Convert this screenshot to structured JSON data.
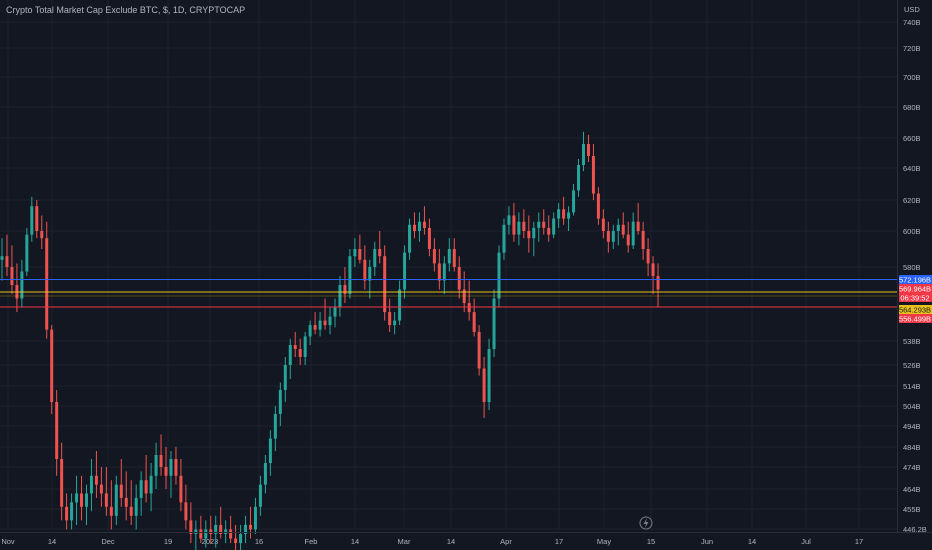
{
  "title": "Crypto Total Market Cap Exclude BTC, $, 1D, CRYPTOCAP",
  "currency": "USD",
  "colors": {
    "background": "#131722",
    "grid": "#1e222d",
    "up": "#26a69a",
    "down": "#ef5350",
    "text": "#b2b5be",
    "line_blue": "#2962ff",
    "line_yellow": "#e8c21a",
    "line_red": "#f23645"
  },
  "icons": {
    "lightning": "lightning-icon"
  },
  "chart_data": {
    "type": "candlestick",
    "interval": "1D",
    "currency": "USD",
    "y_axis": {
      "ticks": [
        "740B",
        "720B",
        "700B",
        "680B",
        "660B",
        "640B",
        "620B",
        "600B",
        "580B",
        "538B",
        "526B",
        "514B",
        "504B",
        "494B",
        "484B",
        "474B",
        "464B",
        "455B",
        "446.2B"
      ],
      "ylim": [
        445,
        745
      ]
    },
    "x_axis": {
      "ticks": [
        "Nov",
        "14",
        "Dec",
        "19",
        "2023",
        "16",
        "Feb",
        "14",
        "Mar",
        "14",
        "Apr",
        "17",
        "May",
        "15",
        "Jun",
        "14",
        "Jul",
        "17"
      ]
    },
    "price_lines": [
      {
        "label": "572.196B",
        "value": 572.196,
        "color": "line_blue",
        "text_color": "#ffffff"
      },
      {
        "label": "569.964B",
        "value": 569.964,
        "color": "line_red",
        "text_color": "#ffffff"
      },
      {
        "label": "06:39:52",
        "value": 567.6,
        "color": "line_red",
        "text_color": "#ffffff"
      },
      {
        "label": "564.293B",
        "value": 564.293,
        "color": "line_yellow",
        "text_color": "#131722"
      },
      {
        "label": "556.499B",
        "value": 556.499,
        "color": "line_red",
        "text_color": "#ffffff"
      }
    ],
    "series": [
      {
        "name": "candles",
        "values": [
          [
            584,
            596,
            574,
            586
          ],
          [
            586,
            598,
            576,
            580
          ],
          [
            580,
            592,
            568,
            572
          ],
          [
            572,
            582,
            560,
            566
          ],
          [
            566,
            584,
            562,
            578
          ],
          [
            578,
            602,
            576,
            598
          ],
          [
            598,
            622,
            594,
            616
          ],
          [
            616,
            620,
            596,
            600
          ],
          [
            600,
            610,
            590,
            596
          ],
          [
            596,
            606,
            540,
            548
          ],
          [
            548,
            552,
            500,
            506
          ],
          [
            506,
            512,
            470,
            478
          ],
          [
            478,
            486,
            450,
            456
          ],
          [
            456,
            462,
            446,
            450
          ],
          [
            450,
            462,
            446,
            458
          ],
          [
            458,
            470,
            448,
            462
          ],
          [
            462,
            470,
            450,
            456
          ],
          [
            456,
            466,
            448,
            462
          ],
          [
            462,
            478,
            454,
            470
          ],
          [
            470,
            482,
            460,
            466
          ],
          [
            466,
            474,
            456,
            462
          ],
          [
            462,
            474,
            452,
            456
          ],
          [
            456,
            468,
            446,
            452
          ],
          [
            452,
            470,
            448,
            466
          ],
          [
            466,
            478,
            456,
            460
          ],
          [
            460,
            472,
            450,
            456
          ],
          [
            456,
            468,
            448,
            452
          ],
          [
            452,
            466,
            446,
            460
          ],
          [
            460,
            472,
            452,
            468
          ],
          [
            468,
            480,
            458,
            462
          ],
          [
            462,
            476,
            454,
            470
          ],
          [
            470,
            486,
            464,
            480
          ],
          [
            480,
            490,
            470,
            474
          ],
          [
            474,
            484,
            464,
            470
          ],
          [
            470,
            482,
            460,
            478
          ],
          [
            478,
            484,
            466,
            470
          ],
          [
            470,
            478,
            454,
            458
          ],
          [
            458,
            466,
            446,
            450
          ],
          [
            450,
            458,
            440,
            444
          ],
          [
            444,
            450,
            436,
            446
          ],
          [
            446,
            452,
            440,
            442
          ],
          [
            442,
            450,
            438,
            446
          ],
          [
            446,
            452,
            440,
            444
          ],
          [
            444,
            452,
            438,
            448
          ],
          [
            448,
            456,
            442,
            444
          ],
          [
            444,
            450,
            440,
            446
          ],
          [
            446,
            452,
            440,
            442
          ],
          [
            442,
            448,
            436,
            440
          ],
          [
            440,
            448,
            436,
            444
          ],
          [
            444,
            452,
            440,
            448
          ],
          [
            448,
            456,
            442,
            446
          ],
          [
            446,
            460,
            444,
            456
          ],
          [
            456,
            470,
            452,
            466
          ],
          [
            466,
            480,
            462,
            476
          ],
          [
            476,
            492,
            470,
            488
          ],
          [
            488,
            504,
            482,
            500
          ],
          [
            500,
            516,
            494,
            512
          ],
          [
            512,
            530,
            506,
            526
          ],
          [
            526,
            540,
            518,
            536
          ],
          [
            536,
            546,
            530,
            534
          ],
          [
            534,
            540,
            526,
            530
          ],
          [
            530,
            546,
            526,
            542
          ],
          [
            542,
            556,
            536,
            552
          ],
          [
            552,
            560,
            544,
            548
          ],
          [
            548,
            560,
            542,
            556
          ],
          [
            556,
            566,
            548,
            552
          ],
          [
            552,
            562,
            544,
            558
          ],
          [
            558,
            566,
            550,
            562
          ],
          [
            562,
            576,
            558,
            572
          ],
          [
            572,
            580,
            564,
            568
          ],
          [
            568,
            590,
            566,
            586
          ],
          [
            586,
            596,
            580,
            590
          ],
          [
            590,
            598,
            582,
            584
          ],
          [
            584,
            592,
            570,
            574
          ],
          [
            574,
            584,
            566,
            580
          ],
          [
            580,
            594,
            576,
            590
          ],
          [
            590,
            600,
            582,
            586
          ],
          [
            586,
            592,
            556,
            560
          ],
          [
            560,
            566,
            546,
            552
          ],
          [
            552,
            560,
            544,
            556
          ],
          [
            556,
            574,
            552,
            570
          ],
          [
            570,
            592,
            566,
            588
          ],
          [
            588,
            608,
            584,
            604
          ],
          [
            604,
            612,
            596,
            600
          ],
          [
            600,
            612,
            594,
            606
          ],
          [
            606,
            616,
            598,
            602
          ],
          [
            602,
            608,
            586,
            590
          ],
          [
            590,
            596,
            578,
            582
          ],
          [
            582,
            590,
            570,
            574
          ],
          [
            574,
            586,
            568,
            582
          ],
          [
            582,
            596,
            578,
            590
          ],
          [
            590,
            596,
            578,
            580
          ],
          [
            580,
            586,
            566,
            570
          ],
          [
            570,
            578,
            560,
            564
          ],
          [
            564,
            574,
            556,
            560
          ],
          [
            560,
            566,
            542,
            546
          ],
          [
            546,
            552,
            520,
            524
          ],
          [
            524,
            530,
            498,
            506
          ],
          [
            506,
            540,
            502,
            534
          ],
          [
            534,
            570,
            530,
            566
          ],
          [
            566,
            592,
            562,
            588
          ],
          [
            588,
            608,
            584,
            604
          ],
          [
            604,
            616,
            598,
            610
          ],
          [
            610,
            618,
            594,
            598
          ],
          [
            598,
            612,
            592,
            606
          ],
          [
            606,
            614,
            596,
            600
          ],
          [
            600,
            610,
            588,
            596
          ],
          [
            596,
            606,
            586,
            602
          ],
          [
            602,
            612,
            594,
            606
          ],
          [
            606,
            614,
            598,
            602
          ],
          [
            602,
            610,
            594,
            598
          ],
          [
            598,
            612,
            596,
            608
          ],
          [
            608,
            618,
            602,
            614
          ],
          [
            614,
            622,
            604,
            608
          ],
          [
            608,
            616,
            600,
            612
          ],
          [
            612,
            630,
            610,
            626
          ],
          [
            626,
            646,
            622,
            642
          ],
          [
            642,
            664,
            638,
            656
          ],
          [
            656,
            662,
            644,
            648
          ],
          [
            648,
            656,
            620,
            624
          ],
          [
            624,
            628,
            604,
            608
          ],
          [
            608,
            614,
            596,
            600
          ],
          [
            600,
            606,
            588,
            594
          ],
          [
            594,
            604,
            590,
            600
          ],
          [
            600,
            608,
            592,
            604
          ],
          [
            604,
            612,
            596,
            598
          ],
          [
            598,
            606,
            588,
            592
          ],
          [
            592,
            612,
            590,
            606
          ],
          [
            606,
            618,
            598,
            600
          ],
          [
            600,
            606,
            584,
            590
          ],
          [
            590,
            596,
            576,
            582
          ],
          [
            582,
            586,
            568,
            576
          ],
          [
            576,
            582,
            562,
            570
          ]
        ]
      }
    ]
  }
}
